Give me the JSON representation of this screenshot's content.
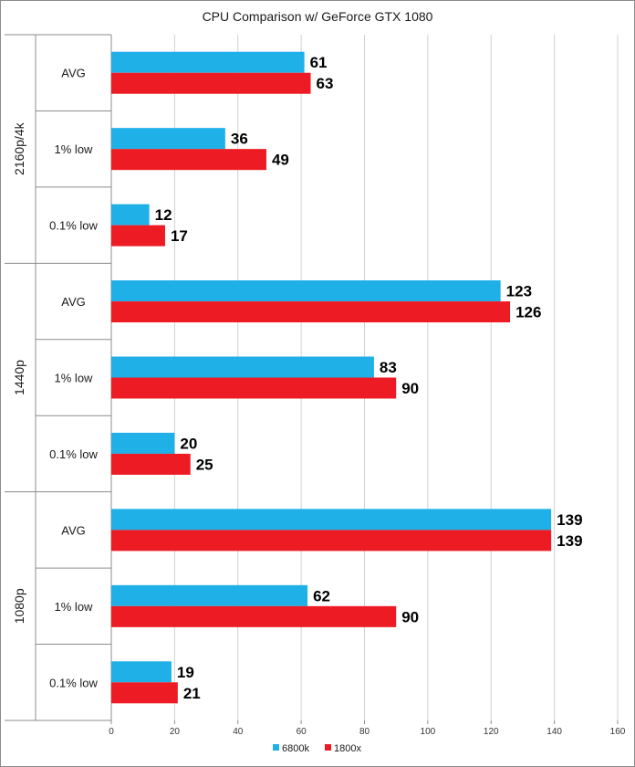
{
  "chart_data": {
    "type": "bar",
    "orientation": "horizontal",
    "title": "CPU Comparison w/ GeForce GTX 1080",
    "xlabel": "",
    "ylabel": "",
    "xlim": [
      0,
      160
    ],
    "x_ticks": [
      0,
      20,
      40,
      60,
      80,
      100,
      120,
      140,
      160
    ],
    "grid": true,
    "legend_position": "bottom",
    "groups": [
      {
        "name": "2160p/4k",
        "categories": [
          "AVG",
          "1% low",
          "0.1% low"
        ]
      },
      {
        "name": "1440p",
        "categories": [
          "AVG",
          "1% low",
          "0.1% low"
        ]
      },
      {
        "name": "1080p",
        "categories": [
          "AVG",
          "1% low",
          "0.1% low"
        ]
      }
    ],
    "series": [
      {
        "name": "6800k",
        "color": "#1fb0e8",
        "values": [
          61,
          36,
          12,
          123,
          83,
          20,
          139,
          62,
          19
        ]
      },
      {
        "name": "1800x",
        "color": "#ed1c24",
        "values": [
          63,
          49,
          17,
          126,
          90,
          25,
          139,
          90,
          21
        ]
      }
    ]
  }
}
